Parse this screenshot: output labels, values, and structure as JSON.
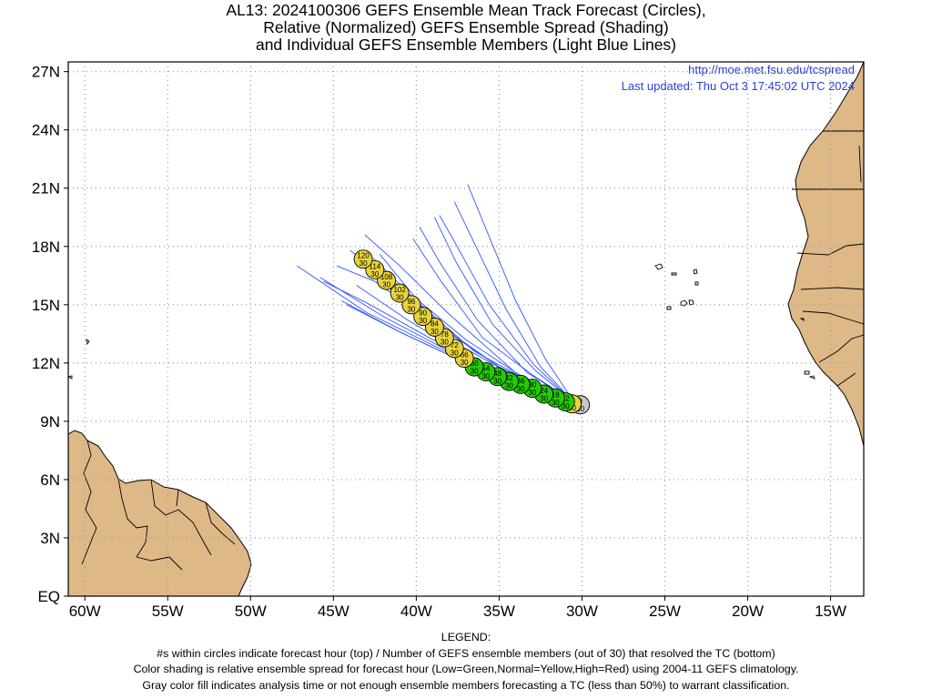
{
  "title": {
    "line1": "AL13: 2024100306 GEFS Ensemble Mean Track Forecast (Circles),",
    "line2": "Relative (Normalized) GEFS Ensemble Spread (Shading)",
    "line3": "and Individual GEFS Ensemble Members (Light Blue Lines)"
  },
  "credit": {
    "url": "http://moe.met.fsu.edu/tcspread",
    "updated": "Last updated: Thu Oct 3 17:45:02 UTC 2024"
  },
  "axes": {
    "lat_ticks": [
      "27N",
      "24N",
      "21N",
      "18N",
      "15N",
      "12N",
      "9N",
      "6N",
      "3N",
      "EQ"
    ],
    "lat_values": [
      27,
      24,
      21,
      18,
      15,
      12,
      9,
      6,
      3,
      0
    ],
    "lon_ticks": [
      "60W",
      "55W",
      "50W",
      "45W",
      "40W",
      "35W",
      "30W",
      "25W",
      "20W",
      "15W"
    ],
    "lon_values": [
      -60,
      -55,
      -50,
      -45,
      -40,
      -35,
      -30,
      -25,
      -20,
      -15
    ],
    "lon_range": [
      -61,
      -13
    ],
    "lat_range": [
      0,
      27.5
    ],
    "grid": "dotted"
  },
  "colors": {
    "land": "#deb887",
    "ocean": "#ffffff",
    "low_spread": "#22cc00",
    "normal_spread": "#e8d43a",
    "analysis": "#c8c8c8",
    "members": "#3355ff"
  },
  "track": [
    {
      "hour": "0",
      "members": "30",
      "lon": -30.1,
      "lat": 9.85,
      "spread": "analysis"
    },
    {
      "hour": "6",
      "members": "30",
      "lon": -30.6,
      "lat": 9.9,
      "spread": "normal"
    },
    {
      "hour": "12",
      "members": "30",
      "lon": -31.0,
      "lat": 10.0,
      "spread": "low"
    },
    {
      "hour": "18",
      "members": "30",
      "lon": -31.6,
      "lat": 10.2,
      "spread": "low"
    },
    {
      "hour": "24",
      "members": "30",
      "lon": -32.3,
      "lat": 10.4,
      "spread": "low"
    },
    {
      "hour": "30",
      "members": "30",
      "lon": -33.0,
      "lat": 10.7,
      "spread": "low"
    },
    {
      "hour": "36",
      "members": "30",
      "lon": -33.7,
      "lat": 10.9,
      "spread": "low"
    },
    {
      "hour": "42",
      "members": "30",
      "lon": -34.4,
      "lat": 11.05,
      "spread": "low"
    },
    {
      "hour": "48",
      "members": "30",
      "lon": -35.1,
      "lat": 11.3,
      "spread": "low"
    },
    {
      "hour": "54",
      "members": "30",
      "lon": -35.8,
      "lat": 11.55,
      "spread": "low"
    },
    {
      "hour": "60",
      "members": "30",
      "lon": -36.5,
      "lat": 11.8,
      "spread": "low"
    },
    {
      "hour": "66",
      "members": "30",
      "lon": -37.1,
      "lat": 12.25,
      "spread": "normal"
    },
    {
      "hour": "72",
      "members": "30",
      "lon": -37.7,
      "lat": 12.75,
      "spread": "normal"
    },
    {
      "hour": "78",
      "members": "30",
      "lon": -38.3,
      "lat": 13.3,
      "spread": "normal"
    },
    {
      "hour": "84",
      "members": "30",
      "lon": -38.9,
      "lat": 13.85,
      "spread": "normal"
    },
    {
      "hour": "90",
      "members": "30",
      "lon": -39.6,
      "lat": 14.4,
      "spread": "normal"
    },
    {
      "hour": "96",
      "members": "30",
      "lon": -40.3,
      "lat": 15.0,
      "spread": "normal"
    },
    {
      "hour": "102",
      "members": "30",
      "lon": -41.0,
      "lat": 15.6,
      "spread": "normal"
    },
    {
      "hour": "108",
      "members": "30",
      "lon": -41.8,
      "lat": 16.25,
      "spread": "normal"
    },
    {
      "hour": "114",
      "members": "30",
      "lon": -42.5,
      "lat": 16.8,
      "spread": "normal"
    },
    {
      "hour": "120",
      "members": "30",
      "lon": -43.2,
      "lat": 17.35,
      "spread": "normal"
    }
  ],
  "members": [
    [
      [
        -30.5,
        10.0
      ],
      [
        -34,
        11.2
      ],
      [
        -38,
        12.6
      ],
      [
        -42,
        14.4
      ],
      [
        -45.8,
        16.4
      ]
    ],
    [
      [
        -30.5,
        10.0
      ],
      [
        -34,
        11.0
      ],
      [
        -38,
        12.5
      ],
      [
        -43,
        14.6
      ],
      [
        -47.2,
        17.0
      ]
    ],
    [
      [
        -30.5,
        10.0
      ],
      [
        -34,
        11.1
      ],
      [
        -37.5,
        12.2
      ],
      [
        -41,
        13.6
      ],
      [
        -44.5,
        15.2
      ]
    ],
    [
      [
        -30.5,
        10.0
      ],
      [
        -34,
        11.3
      ],
      [
        -38,
        13.2
      ],
      [
        -41,
        15.4
      ],
      [
        -43.4,
        17.1
      ]
    ],
    [
      [
        -30.5,
        10.0
      ],
      [
        -33.5,
        11.2
      ],
      [
        -36.5,
        12.6
      ],
      [
        -40,
        15.2
      ],
      [
        -42.6,
        17.4
      ]
    ],
    [
      [
        -30.5,
        10.0
      ],
      [
        -33,
        11.4
      ],
      [
        -36,
        13.3
      ],
      [
        -38.5,
        16.2
      ],
      [
        -40.2,
        18.4
      ]
    ],
    [
      [
        -30.5,
        10.0
      ],
      [
        -32.8,
        11.6
      ],
      [
        -35.4,
        14.0
      ],
      [
        -37.6,
        17.2
      ],
      [
        -38.9,
        19.5
      ]
    ],
    [
      [
        -30.5,
        10.0
      ],
      [
        -32.5,
        11.8
      ],
      [
        -34.6,
        14.8
      ],
      [
        -36.4,
        18.0
      ],
      [
        -37.7,
        20.3
      ]
    ],
    [
      [
        -30.5,
        10.0
      ],
      [
        -32.2,
        12.2
      ],
      [
        -34,
        15.2
      ],
      [
        -35.6,
        18.5
      ],
      [
        -36.9,
        21.2
      ]
    ],
    [
      [
        -30.5,
        10.0
      ],
      [
        -34,
        11.2
      ],
      [
        -38,
        13.6
      ],
      [
        -41.5,
        16.3
      ],
      [
        -44.0,
        17.8
      ]
    ],
    [
      [
        -30.5,
        10.0
      ],
      [
        -35,
        11.8
      ],
      [
        -39,
        14.1
      ],
      [
        -42.5,
        16.2
      ],
      [
        -44.8,
        17.0
      ]
    ],
    [
      [
        -30.5,
        10.0
      ],
      [
        -33.8,
        11.4
      ],
      [
        -37,
        13.2
      ],
      [
        -40,
        15.3
      ],
      [
        -42.2,
        17.6
      ]
    ],
    [
      [
        -30.5,
        10.0
      ],
      [
        -34.5,
        11.4
      ],
      [
        -39,
        13.2
      ],
      [
        -43,
        15.1
      ],
      [
        -45.6,
        16.2
      ]
    ],
    [
      [
        -30.5,
        10.0
      ],
      [
        -33,
        10.8
      ],
      [
        -37,
        12.0
      ],
      [
        -41,
        13.6
      ],
      [
        -44.2,
        15.0
      ]
    ],
    [
      [
        -30.5,
        10.0
      ],
      [
        -33.3,
        11.5
      ],
      [
        -36.3,
        14.2
      ],
      [
        -38.6,
        17.2
      ],
      [
        -39.8,
        19.0
      ]
    ],
    [
      [
        -30.5,
        10.0
      ],
      [
        -34,
        11.5
      ],
      [
        -38,
        14.5
      ],
      [
        -41,
        17.0
      ],
      [
        -43.1,
        18.6
      ]
    ],
    [
      [
        -30.5,
        10.0
      ],
      [
        -33.5,
        11.0
      ],
      [
        -37,
        12.4
      ],
      [
        -40.5,
        14.2
      ],
      [
        -43.6,
        16.0
      ]
    ],
    [
      [
        -30.5,
        10.0
      ],
      [
        -32.9,
        11.9
      ],
      [
        -35.6,
        15.0
      ],
      [
        -37.6,
        18.1
      ],
      [
        -38.6,
        19.6
      ]
    ]
  ],
  "legend": {
    "heading": "LEGEND:",
    "line1": "#s within circles indicate forecast hour (top) / Number of GEFS ensemble members (out of 30) that resolved the TC (bottom)",
    "line2": "Color shading is relative ensemble spread for forecast hour (Low=Green,Normal=Yellow,High=Red) using 2004-11 GEFS climatology.",
    "line3": "Gray color fill indicates analysis time or not enough ensemble members forecasting a TC (less than 50%) to warrant classification."
  }
}
